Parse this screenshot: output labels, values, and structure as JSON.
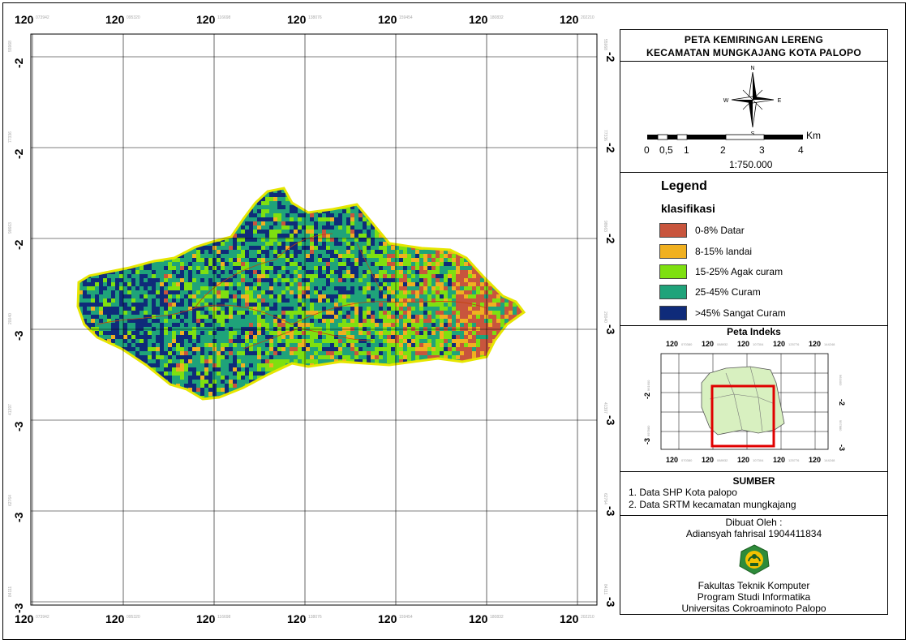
{
  "map": {
    "lon_labels": [
      "120",
      "120",
      "120",
      "120",
      "120",
      "120",
      "120"
    ],
    "lon_sub_labels": [
      "073942",
      "095320",
      "116698",
      "138076",
      "159454",
      "180832",
      "202210"
    ],
    "lat_labels": [
      "-2",
      "-2",
      "-2",
      "-3",
      "-3",
      "-3",
      "-3"
    ],
    "lat_sub_labels": [
      "55968",
      "77336",
      "98663",
      "20040",
      "41397",
      "62764",
      "84111"
    ]
  },
  "title": {
    "line1": "PETA KEMIRINGAN LERENG",
    "line2": "KECAMATAN MUNGKAJANG KOTA PALOPO"
  },
  "compass": {
    "n": "N",
    "s": "S",
    "e": "E",
    "w": "W"
  },
  "scale": {
    "unit": "Km",
    "ticks": [
      "0",
      "0,5",
      "1",
      "2",
      "3",
      "4"
    ],
    "ratio": "1:750.000"
  },
  "legend": {
    "title": "Legend",
    "subtitle": "klasifikasi",
    "items": [
      {
        "label": "0-8% Datar",
        "color": "#c8553d"
      },
      {
        "label": "8-15% landai",
        "color": "#f0b020"
      },
      {
        "label": "15-25% Agak curam",
        "color": "#7ee010"
      },
      {
        "label": "25-45% Curam",
        "color": "#1fa37a"
      },
      {
        "label": ">45% Sangat Curam",
        "color": "#0f2b7a"
      }
    ]
  },
  "index_map": {
    "title": "Peta Indeks",
    "lon_labels": [
      "120",
      "120",
      "120",
      "120",
      "120"
    ],
    "lon_sub_labels": [
      "070380",
      "088932",
      "107304",
      "125776",
      "144248"
    ],
    "lat_labels": [
      "-2",
      "-3"
    ],
    "lat_sub_labels": [
      "961600",
      "997880"
    ]
  },
  "source": {
    "title": "SUMBER",
    "items": [
      "1. Data SHP Kota palopo",
      "2. Data SRTM kecamatan mungkajang"
    ]
  },
  "credits": {
    "made_by_label": "Dibuat Oleh :",
    "author": "Adiansyah fahrisal 1904411834",
    "faculty": "Fakultas Teknik Komputer",
    "program": "Program Studi Informatika",
    "university": "Universitas Cokroaminoto Palopo"
  }
}
